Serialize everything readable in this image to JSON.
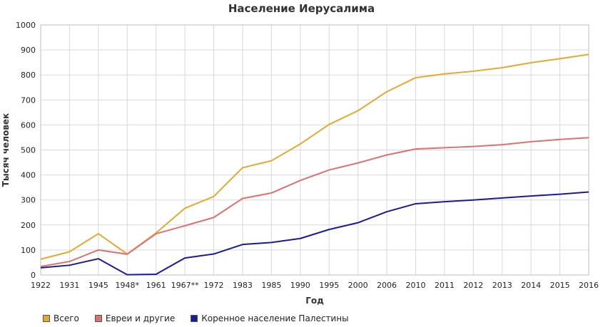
{
  "chart_data": {
    "type": "line",
    "title": "Население Иерусалима",
    "xlabel": "Год",
    "ylabel": "Тысяч человек",
    "ylim": [
      0,
      1000
    ],
    "yticks": [
      0,
      100,
      200,
      300,
      400,
      500,
      600,
      700,
      800,
      900,
      1000
    ],
    "grid": true,
    "legend_position": "bottom",
    "categories": [
      "1922",
      "1931",
      "1945",
      "1948*",
      "1961",
      "1967**",
      "1972",
      "1983",
      "1985",
      "1990",
      "1995",
      "2000",
      "2006",
      "2010",
      "2011",
      "2012",
      "2013",
      "2014",
      "2015",
      "2016"
    ],
    "series": [
      {
        "name": "Всего",
        "color": "#e6a830",
        "values": [
          63,
          93,
          165,
          84,
          168,
          267,
          314,
          429,
          457,
          524,
          602,
          657,
          733,
          789,
          804,
          815,
          829,
          849,
          865,
          882
        ]
      },
      {
        "name": "Евреи и другие",
        "color": "#e07070",
        "values": [
          34,
          54,
          100,
          83,
          165,
          197,
          230,
          306,
          328,
          378,
          420,
          448,
          480,
          504,
          509,
          514,
          521,
          533,
          542,
          549
        ]
      },
      {
        "name": "Коренное население Палестины",
        "color": "#1a1a9e",
        "values": [
          29,
          39,
          65,
          1,
          3,
          68,
          84,
          122,
          130,
          146,
          182,
          209,
          253,
          285,
          293,
          300,
          308,
          316,
          323,
          332
        ]
      }
    ]
  }
}
